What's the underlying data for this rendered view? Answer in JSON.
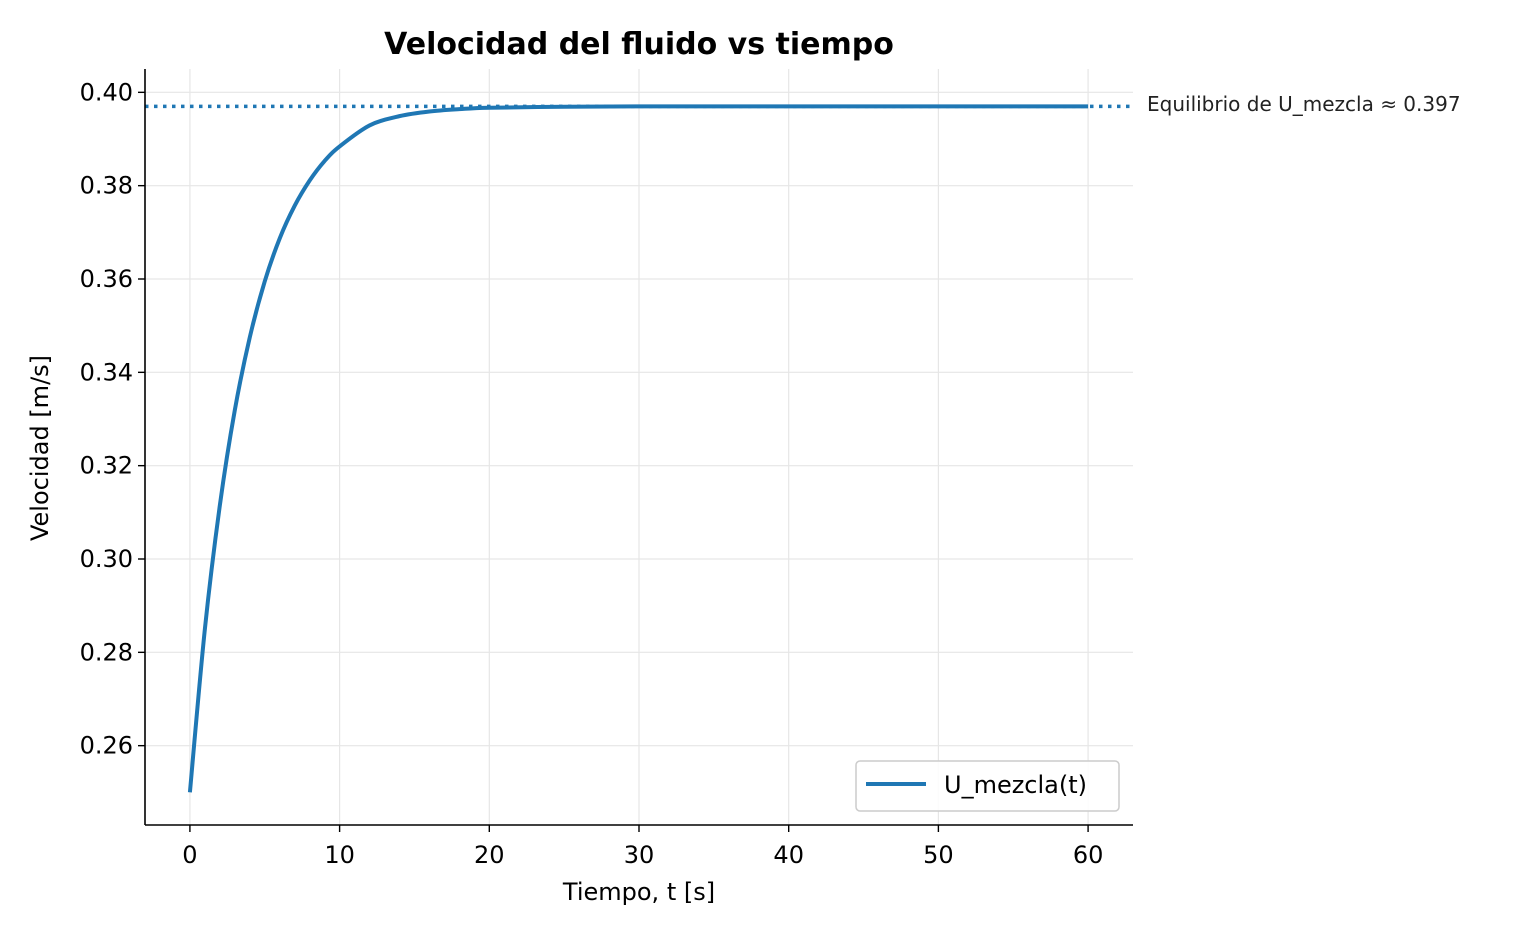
{
  "chart_data": {
    "type": "line",
    "title": "Velocidad del fluido vs tiempo",
    "xlabel": "Tiempo, t [s]",
    "ylabel": "Velocidad [m/s]",
    "xlim": [
      -3,
      63
    ],
    "ylim": [
      0.243,
      0.405
    ],
    "xticks": [
      0,
      10,
      20,
      30,
      40,
      50,
      60
    ],
    "xtick_labels": [
      "0",
      "10",
      "20",
      "30",
      "40",
      "50",
      "60"
    ],
    "yticks": [
      0.26,
      0.28,
      0.3,
      0.32,
      0.34,
      0.36,
      0.38,
      0.4
    ],
    "ytick_labels": [
      "0.26",
      "0.28",
      "0.30",
      "0.32",
      "0.34",
      "0.36",
      "0.38",
      "0.40"
    ],
    "grid": true,
    "legend_position": "bottom-right",
    "series": [
      {
        "name": "U_mezcla(t)",
        "color": "#1f77b4",
        "x": [
          0,
          1,
          2,
          3,
          4,
          5,
          6,
          7,
          8,
          9,
          10,
          12,
          14,
          16,
          18,
          20,
          25,
          30,
          40,
          50,
          60
        ],
        "y": [
          0.25,
          0.285,
          0.3115,
          0.3319,
          0.3475,
          0.3595,
          0.3687,
          0.3757,
          0.3811,
          0.3853,
          0.3884,
          0.3929,
          0.3949,
          0.3959,
          0.3964,
          0.3967,
          0.3969,
          0.397,
          0.397,
          0.397,
          0.397
        ]
      }
    ],
    "reference_line": {
      "y": 0.397,
      "style": "dotted",
      "color": "#1f77b4",
      "label": "Equilibrio de U_mezcla ≈ 0.397"
    }
  }
}
